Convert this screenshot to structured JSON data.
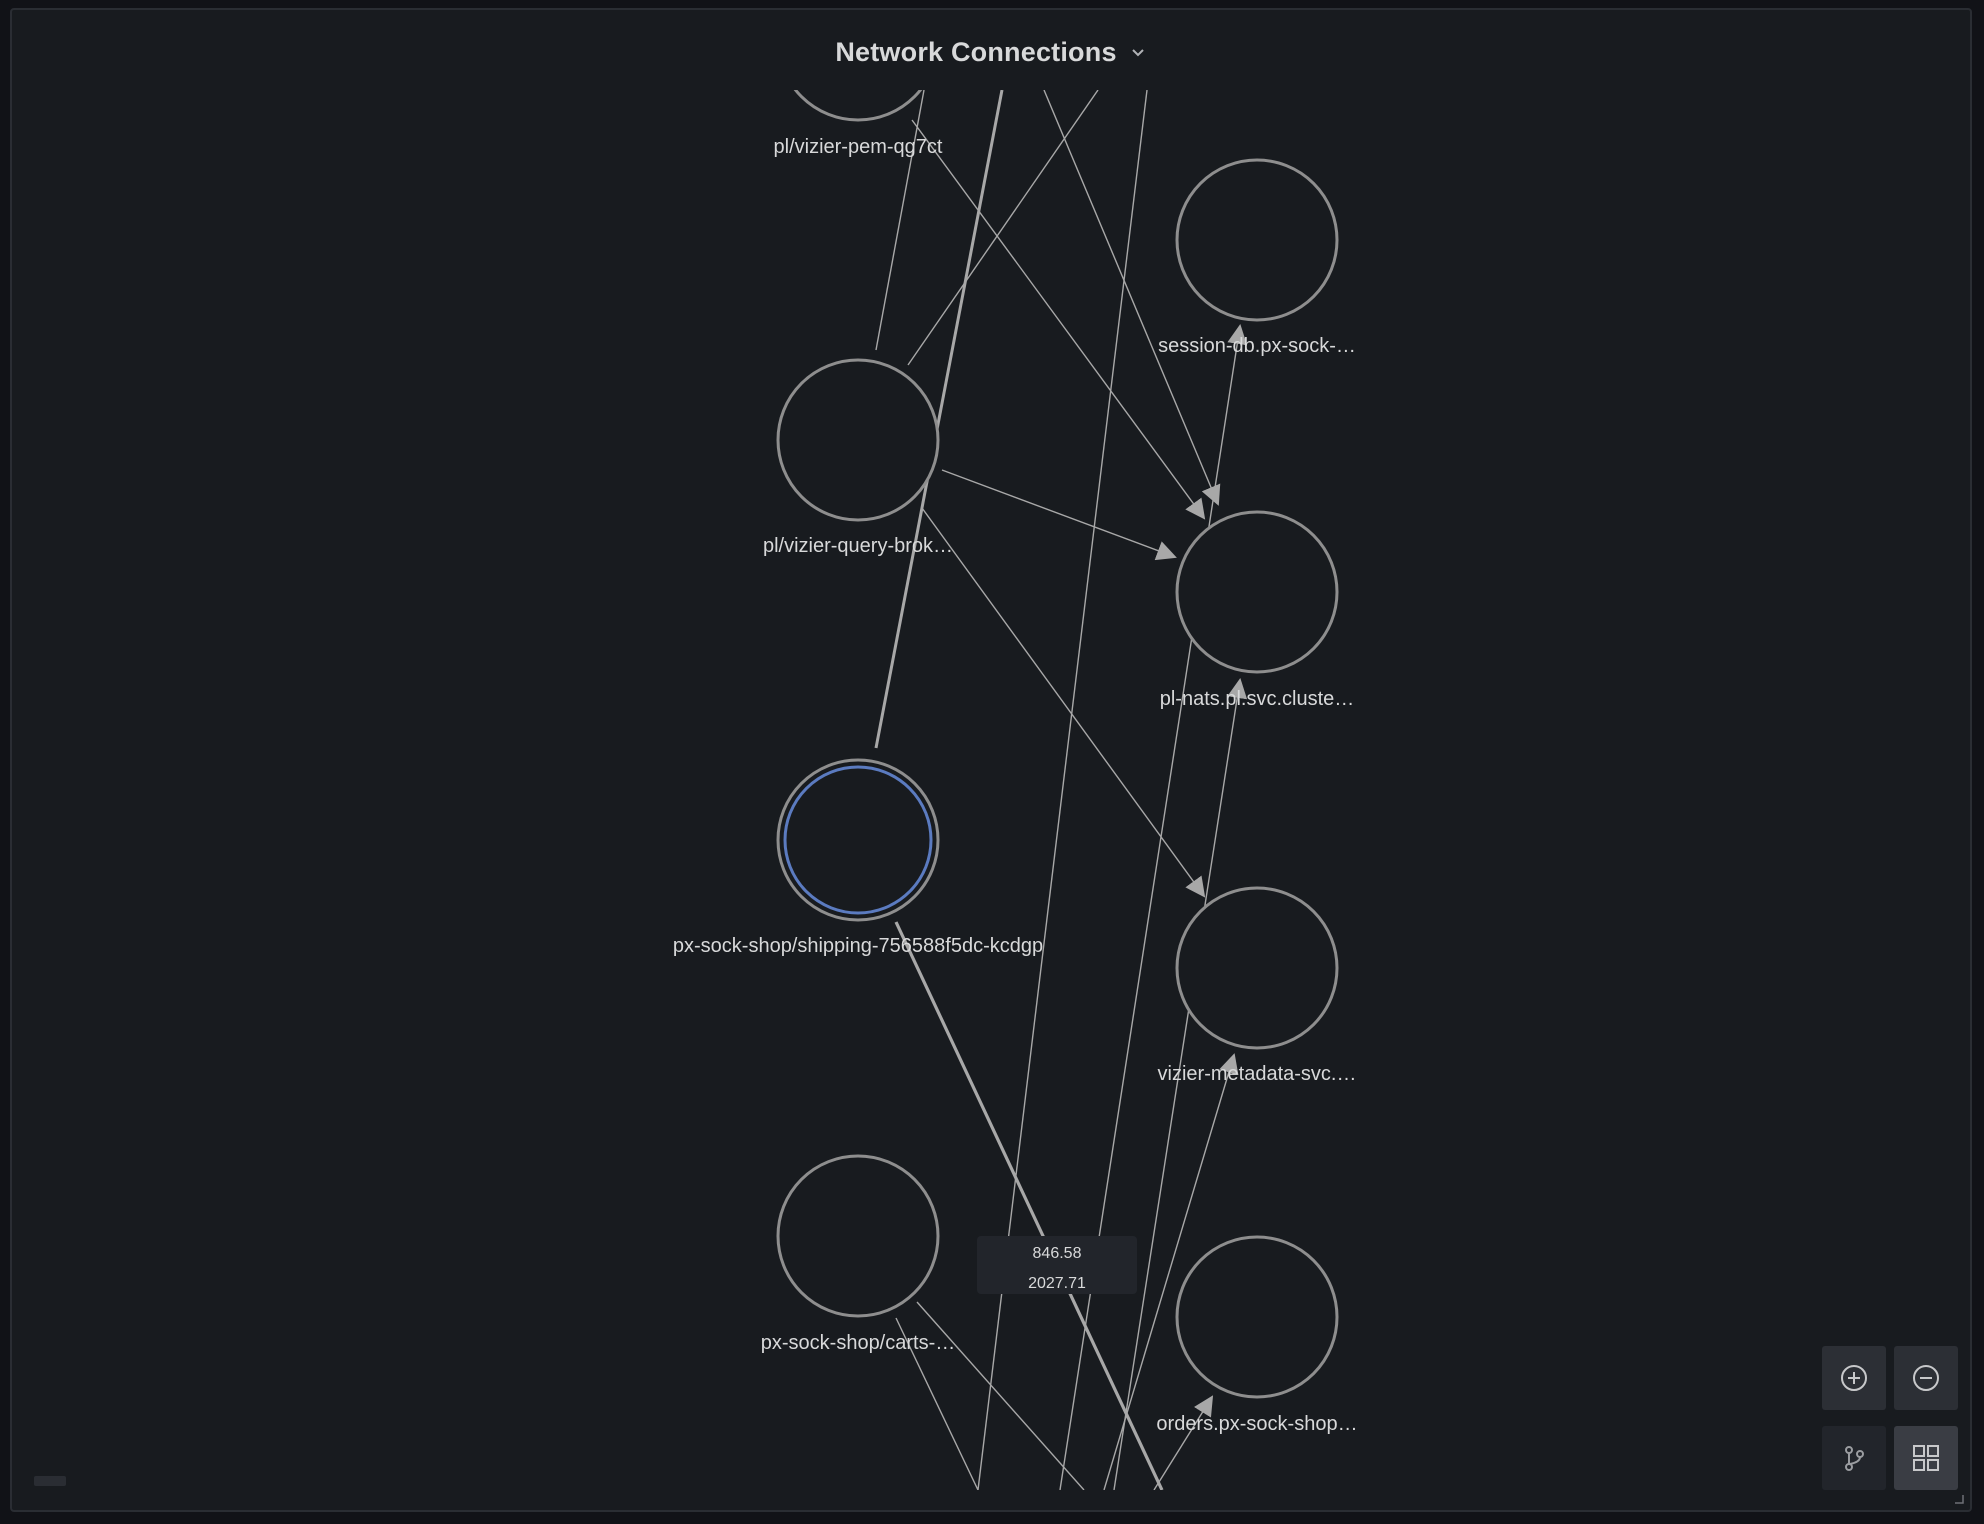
{
  "panel": {
    "title": "Network Connections",
    "menu_icon": "chevron-down-icon"
  },
  "nodes": {
    "vizier_pem": "pl/vizier-pem-qg7ct",
    "query_broker": "pl/vizier-query-brok…",
    "shipping": "px-sock-shop/shipping-756588f5dc-kcdgp",
    "carts": "px-sock-shop/carts-…",
    "session_db": "session-db.px-sock-…",
    "pl_nats": "pl-nats.pl.svc.cluste…",
    "vizier_metadata": "vizier-metadata-svc.…",
    "orders": "orders.px-sock-shop…"
  },
  "edge_tooltip": {
    "value1": "846.58",
    "value2": "2027.71"
  },
  "controls": {
    "zoom_in": "zoom-in-icon",
    "zoom_out": "zoom-out-icon",
    "layout_hierarchy": "branch-icon",
    "layout_grid": "grid-icon"
  },
  "colors": {
    "background": "#181b1f",
    "node_stroke": "#8e8e8e",
    "selected_node": "#5b7bc0",
    "edge": "#a8a8a8",
    "text": "#d8d9da"
  }
}
